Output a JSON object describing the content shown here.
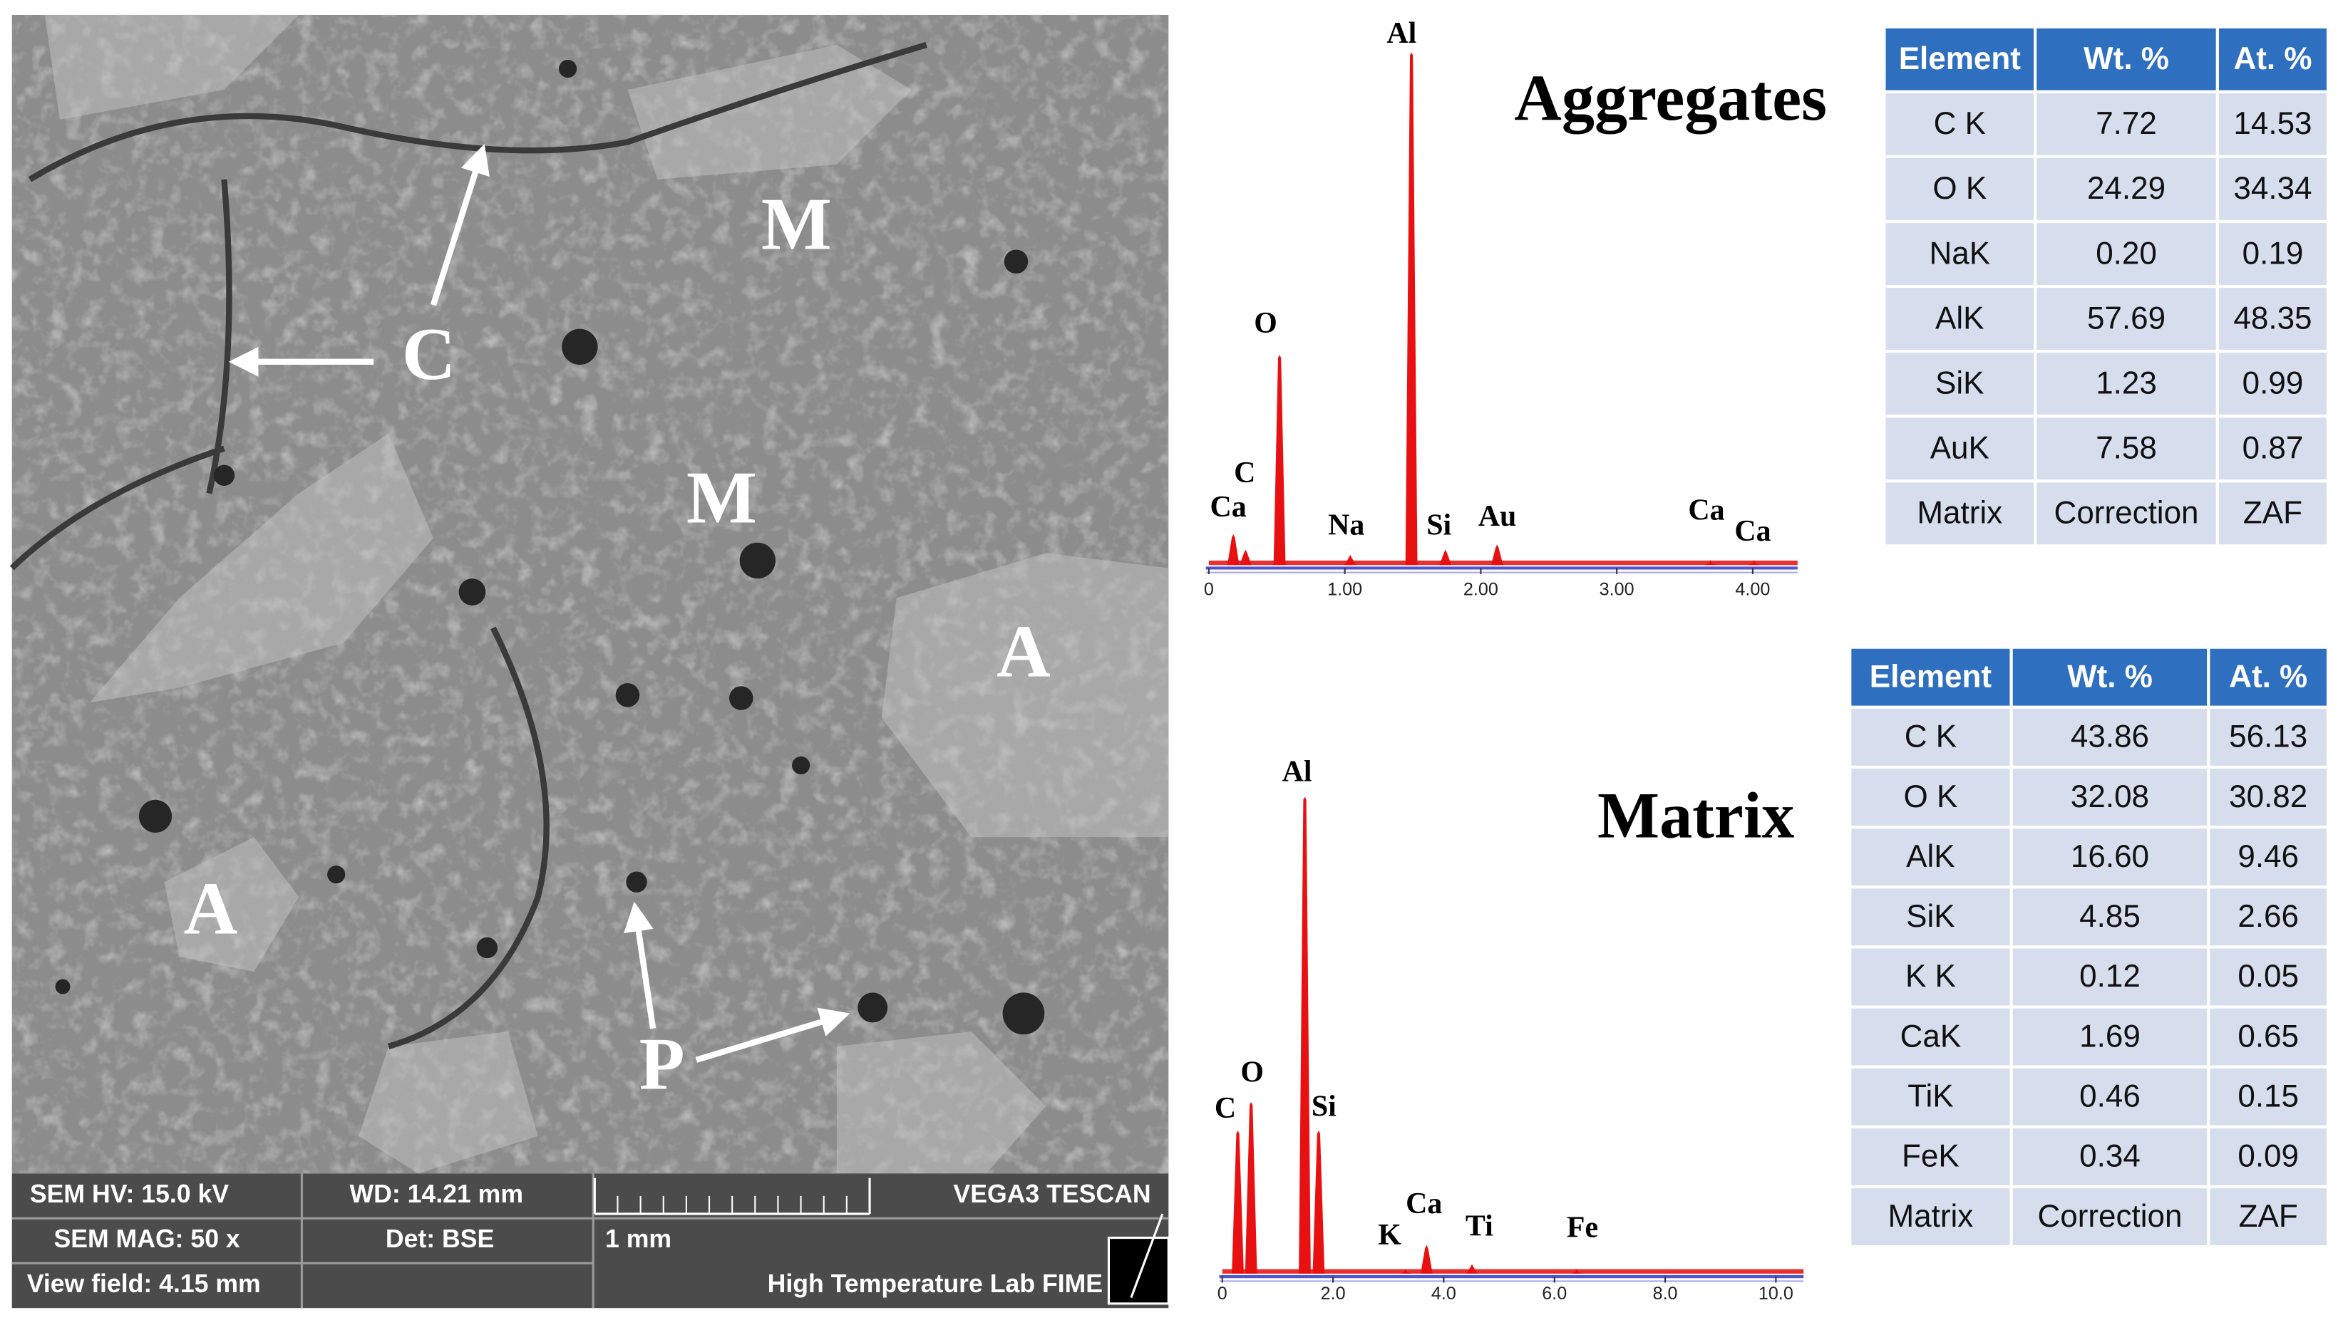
{
  "sem": {
    "labels": [
      "M",
      "C",
      "M",
      "A",
      "A",
      "P"
    ],
    "info": {
      "hv": "SEM HV: 15.0 kV",
      "wd": "WD: 14.21 mm",
      "maker": "VEGA3 TESCAN",
      "mag": "SEM MAG: 50 x",
      "det": "Det: BSE",
      "scale": "1 mm",
      "field": "View field: 4.15 mm",
      "lab": "High Temperature Lab FIME"
    }
  },
  "spectra": [
    {
      "title": "Aggregates",
      "xlim": [
        0,
        4.33
      ],
      "xticks": [
        0,
        {
          "value": 1,
          "label": "1.00"
        },
        {
          "value": 2,
          "label": "2.00"
        },
        {
          "value": 3,
          "label": "3.00"
        },
        {
          "value": 4,
          "label": "4.00"
        }
      ],
      "peaks": [
        {
          "label": "Ca",
          "x": 0.18,
          "intensity": 6
        },
        {
          "label": "C",
          "x": 0.27,
          "intensity": 3
        },
        {
          "label": "O",
          "x": 0.52,
          "intensity": 41
        },
        {
          "label": "Na",
          "x": 1.04,
          "intensity": 2
        },
        {
          "label": "Al",
          "x": 1.49,
          "intensity": 100
        },
        {
          "label": "Si",
          "x": 1.74,
          "intensity": 3
        },
        {
          "label": "Au",
          "x": 2.12,
          "intensity": 4
        },
        {
          "label": "Ca",
          "x": 3.69,
          "intensity": 1
        },
        {
          "label": "Ca",
          "x": 4.01,
          "intensity": 1
        }
      ]
    },
    {
      "title": "Matrix",
      "xlim": [
        0,
        10.5
      ],
      "xticks": [
        0,
        {
          "value": 2,
          "label": "2.0"
        },
        {
          "value": 4,
          "label": "4.0"
        },
        {
          "value": 6,
          "label": "6.0"
        },
        {
          "value": 8,
          "label": "8.0"
        },
        {
          "value": 10,
          "label": "10.0"
        }
      ],
      "peaks": [
        {
          "label": "C",
          "x": 0.28,
          "intensity": 30
        },
        {
          "label": "O",
          "x": 0.52,
          "intensity": 36
        },
        {
          "label": "Al",
          "x": 1.49,
          "intensity": 100
        },
        {
          "label": "Si",
          "x": 1.74,
          "intensity": 30
        },
        {
          "label": "K",
          "x": 3.31,
          "intensity": 1
        },
        {
          "label": "Ca",
          "x": 3.69,
          "intensity": 6
        },
        {
          "label": "Ti",
          "x": 4.51,
          "intensity": 2
        },
        {
          "label": "Fe",
          "x": 6.4,
          "intensity": 1
        }
      ]
    }
  ],
  "tables": [
    {
      "header": [
        "Element",
        "Wt. %",
        "At. %"
      ],
      "rows": [
        [
          "C K",
          "7.72",
          "14.53"
        ],
        [
          "O K",
          "24.29",
          "34.34"
        ],
        [
          "NaK",
          "0.20",
          "0.19"
        ],
        [
          "AlK",
          "57.69",
          "48.35"
        ],
        [
          "SiK",
          "1.23",
          "0.99"
        ],
        [
          "AuK",
          "7.58",
          "0.87"
        ],
        [
          "Matrix",
          "Correction",
          "ZAF"
        ]
      ]
    },
    {
      "header": [
        "Element",
        "Wt. %",
        "At. %"
      ],
      "rows": [
        [
          "C K",
          "43.86",
          "56.13"
        ],
        [
          "O K",
          "32.08",
          "30.82"
        ],
        [
          "AlK",
          "16.60",
          "9.46"
        ],
        [
          "SiK",
          "4.85",
          "2.66"
        ],
        [
          "K K",
          "0.12",
          "0.05"
        ],
        [
          "CaK",
          "1.69",
          "0.65"
        ],
        [
          "TiK",
          "0.46",
          "0.15"
        ],
        [
          "FeK",
          "0.34",
          "0.09"
        ],
        [
          "Matrix",
          "Correction",
          "ZAF"
        ]
      ]
    }
  ]
}
